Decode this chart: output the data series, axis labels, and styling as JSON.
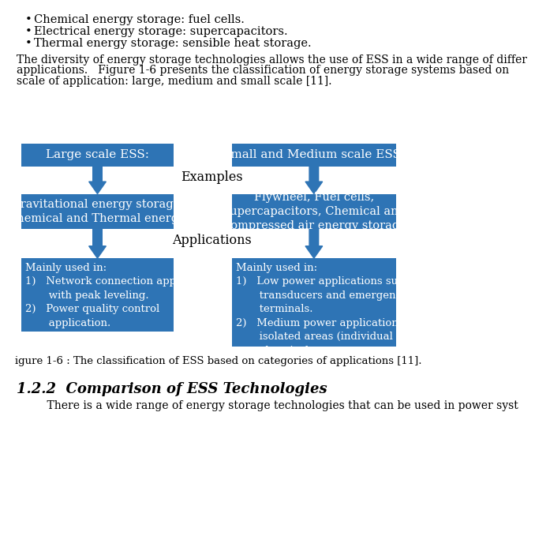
{
  "bg_color": "#ffffff",
  "box_color": "#2E74B5",
  "text_color": "#ffffff",
  "arrow_color": "#2E74B5",
  "top_left_text": "Large scale ESS:",
  "top_right_text": "Small and Medium scale ESS:",
  "mid_left_text": "Gravitational energy storage,\nChemical and Thermal energy.",
  "mid_right_text": "Flywheel, Fuel cells,\nSupercapacitors, Chemical and\nCompressed air energy storage",
  "bot_left_text": "Mainly used in:\n1)   Network connection application\n       with peak leveling.\n2)   Power quality control\n       application.",
  "bot_right_text": "Mainly used in:\n1)   Low power applications such as\n       transducers and emergency\n       terminals.\n2)   Medium power application in\n       isolated areas (individual\n       electrical systems, town supply).",
  "label_examples": "Examples",
  "label_applications": "Applications",
  "caption": "igure 1-6 : The classification of ESS based on categories of applications [11].",
  "bullet_texts": [
    "Chemical energy storage: fuel cells.",
    "Electrical energy storage: supercapacitors.",
    "Thermal energy storage: sensible heat storage."
  ],
  "para_lines": [
    "The diversity of energy storage technologies allows the use of ESS in a wide range of differ",
    "applications.   Figure 1-6 presents the classification of energy storage systems based on",
    "scale of application: large, medium and small scale [11]."
  ],
  "footer_header": "1.2.2  Comparison of ESS Technologies",
  "footer_para": "    There is a wide range of energy storage technologies that can be used in power syst"
}
